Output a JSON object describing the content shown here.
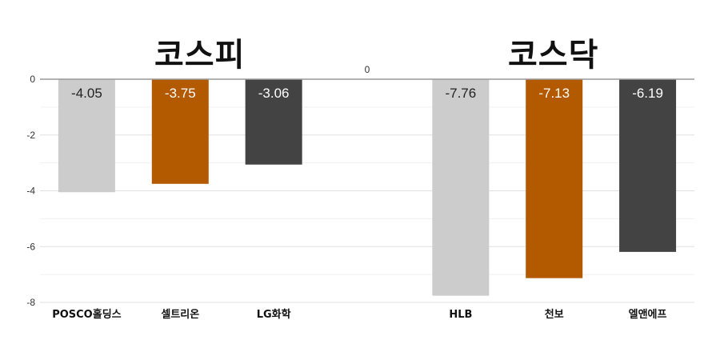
{
  "titles": {
    "left": "코스피",
    "right": "코스닥"
  },
  "colors": {
    "gray": "#cccccc",
    "orange": "#b35900",
    "dark": "#434343"
  },
  "chart_data": {
    "type": "bar",
    "categories": [
      "POSCO홀딩스",
      "셀트리온",
      "LG화학",
      "",
      "HLB",
      "천보",
      "엘앤에프"
    ],
    "values": [
      -4.05,
      -3.75,
      -3.06,
      0,
      -7.76,
      -7.13,
      -6.19
    ],
    "value_labels": [
      "-4.05",
      "-3.75",
      "-3.06",
      "0",
      "-7.76",
      "-7.13",
      "-6.19"
    ],
    "bar_colors": [
      "#cccccc",
      "#b35900",
      "#434343",
      "",
      "#cccccc",
      "#b35900",
      "#434343"
    ],
    "yticks": [
      0,
      -2,
      -4,
      -6,
      -8
    ],
    "ytick_labels": [
      "0",
      "-2",
      "-4",
      "-6",
      "-8"
    ],
    "ylim": [
      -8,
      0
    ],
    "grid": true
  }
}
